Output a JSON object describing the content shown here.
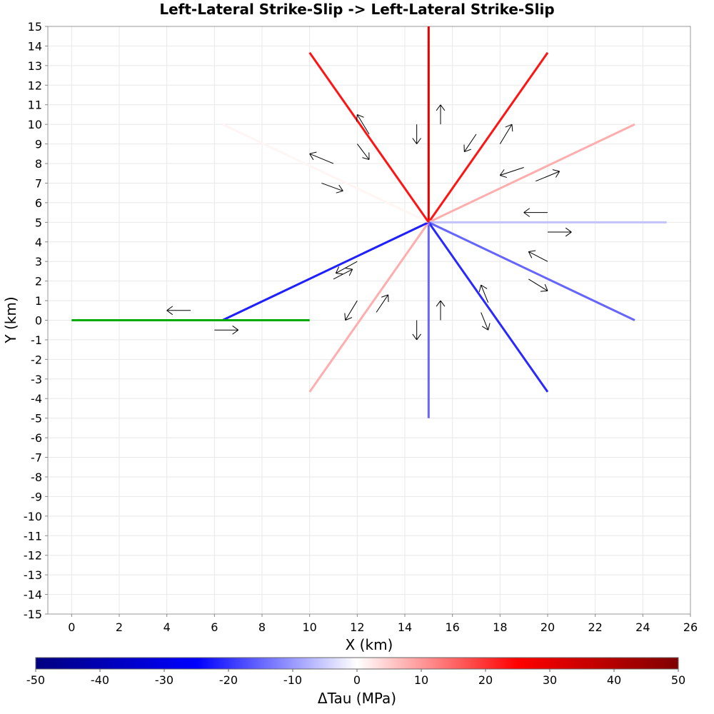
{
  "chart_data": {
    "type": "line",
    "title": "Left-Lateral Strike-Slip -> Left-Lateral Strike-Slip",
    "xlabel": "X (km)",
    "ylabel": "Y (km)",
    "xlim": [
      -1,
      26
    ],
    "ylim": [
      -15,
      15
    ],
    "x_ticks": [
      0,
      2,
      4,
      6,
      8,
      10,
      12,
      14,
      16,
      18,
      20,
      22,
      24,
      26
    ],
    "y_ticks": [
      -15,
      -14,
      -13,
      -12,
      -11,
      -10,
      -9,
      -8,
      -7,
      -6,
      -5,
      -4,
      -3,
      -2,
      -1,
      0,
      1,
      2,
      3,
      4,
      5,
      6,
      7,
      8,
      9,
      10,
      11,
      12,
      13,
      14,
      15
    ],
    "grid": true,
    "source_fault": {
      "x": [
        0,
        10
      ],
      "y": [
        0,
        0
      ],
      "color": "#00aa00"
    },
    "receiver_faults": [
      {
        "x": [
          15,
          15.0
        ],
        "y": [
          5,
          15.0
        ],
        "delta_tau": 30
      },
      {
        "x": [
          15,
          20.0
        ],
        "y": [
          5,
          13.66
        ],
        "delta_tau": 23
      },
      {
        "x": [
          15,
          23.66
        ],
        "y": [
          5,
          10.0
        ],
        "delta_tau": 8
      },
      {
        "x": [
          15,
          25.0
        ],
        "y": [
          5,
          5.0
        ],
        "delta_tau": -6
      },
      {
        "x": [
          15,
          23.66
        ],
        "y": [
          5,
          0.0
        ],
        "delta_tau": -15
      },
      {
        "x": [
          15,
          20.0
        ],
        "y": [
          5,
          -3.66
        ],
        "delta_tau": -21
      },
      {
        "x": [
          15,
          15.0
        ],
        "y": [
          5,
          -5.0
        ],
        "delta_tau": -15
      },
      {
        "x": [
          15,
          10.0
        ],
        "y": [
          5,
          -3.66
        ],
        "delta_tau": 8
      },
      {
        "x": [
          15,
          6.34
        ],
        "y": [
          5,
          0.0
        ],
        "delta_tau": -22
      },
      {
        "x": [
          15,
          6.34
        ],
        "y": [
          5,
          10.0
        ],
        "delta_tau": 1
      },
      {
        "x": [
          15,
          10.0
        ],
        "y": [
          5,
          13.66
        ],
        "delta_tau": 23
      }
    ],
    "slip_arrows": [
      {
        "from": [
          5.0,
          0.5
        ],
        "to": [
          4.0,
          0.5
        ]
      },
      {
        "from": [
          6.0,
          -0.5
        ],
        "to": [
          7.0,
          -0.5
        ]
      },
      {
        "from": [
          12.5,
          9.5
        ],
        "to": [
          12.0,
          10.5
        ]
      },
      {
        "from": [
          12.0,
          9.0
        ],
        "to": [
          12.5,
          8.2
        ]
      },
      {
        "from": [
          11.0,
          8.0
        ],
        "to": [
          10.0,
          8.5
        ]
      },
      {
        "from": [
          10.5,
          7.0
        ],
        "to": [
          11.4,
          6.6
        ]
      },
      {
        "from": [
          14.5,
          10.0
        ],
        "to": [
          14.5,
          9.0
        ]
      },
      {
        "from": [
          15.5,
          10.0
        ],
        "to": [
          15.5,
          11.0
        ]
      },
      {
        "from": [
          17.0,
          9.5
        ],
        "to": [
          16.5,
          8.6
        ]
      },
      {
        "from": [
          18.0,
          9.0
        ],
        "to": [
          18.5,
          10.0
        ]
      },
      {
        "from": [
          19.0,
          7.8
        ],
        "to": [
          18.0,
          7.4
        ]
      },
      {
        "from": [
          19.5,
          7.1
        ],
        "to": [
          20.5,
          7.6
        ]
      },
      {
        "from": [
          20.0,
          5.5
        ],
        "to": [
          19.0,
          5.5
        ]
      },
      {
        "from": [
          20.0,
          4.5
        ],
        "to": [
          21.0,
          4.5
        ]
      },
      {
        "from": [
          20.0,
          3.0
        ],
        "to": [
          19.2,
          3.5
        ]
      },
      {
        "from": [
          19.2,
          2.1
        ],
        "to": [
          20.0,
          1.5
        ]
      },
      {
        "from": [
          17.5,
          0.9
        ],
        "to": [
          17.2,
          1.8
        ]
      },
      {
        "from": [
          17.2,
          0.4
        ],
        "to": [
          17.5,
          -0.5
        ]
      },
      {
        "from": [
          15.5,
          0.0
        ],
        "to": [
          15.5,
          1.0
        ]
      },
      {
        "from": [
          14.5,
          0.0
        ],
        "to": [
          14.5,
          -1.0
        ]
      },
      {
        "from": [
          12.8,
          0.4
        ],
        "to": [
          13.3,
          1.3
        ]
      },
      {
        "from": [
          12.0,
          1.0
        ],
        "to": [
          11.5,
          0.0
        ]
      },
      {
        "from": [
          11.0,
          2.1
        ],
        "to": [
          11.8,
          2.6
        ]
      },
      {
        "from": [
          12.0,
          3.0
        ],
        "to": [
          11.1,
          2.4
        ]
      }
    ],
    "colorbar": {
      "label": "ΔTau (MPa)",
      "range": [
        -50,
        50
      ],
      "ticks": [
        -50,
        -40,
        -30,
        -20,
        -10,
        0,
        10,
        20,
        30,
        40,
        50
      ],
      "stops": [
        {
          "value": -50,
          "color": "#000080"
        },
        {
          "value": -25,
          "color": "#0000ff"
        },
        {
          "value": 0,
          "color": "#ffffff"
        },
        {
          "value": 25,
          "color": "#ff0000"
        },
        {
          "value": 50,
          "color": "#800000"
        }
      ]
    }
  }
}
